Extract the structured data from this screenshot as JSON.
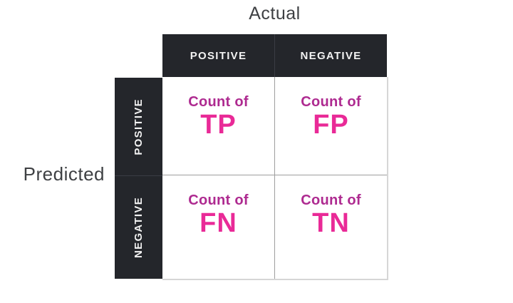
{
  "labels": {
    "top": "Actual",
    "left": "Predicted"
  },
  "columns": [
    "POSITIVE",
    "NEGATIVE"
  ],
  "rows": [
    "POSITIVE",
    "NEGATIVE"
  ],
  "cells": [
    {
      "label": "Count of",
      "value": "TP"
    },
    {
      "label": "Count of",
      "value": "FP"
    },
    {
      "label": "Count of",
      "value": "FN"
    },
    {
      "label": "Count of",
      "value": "TN"
    }
  ],
  "colors": {
    "header_background": "#24262b",
    "header_text": "#f2f2f2",
    "pink_label": "#ae2a90",
    "pink_value": "#e92a97",
    "axis_text": "#3e4043",
    "grid_line": "#9e9e9e"
  }
}
